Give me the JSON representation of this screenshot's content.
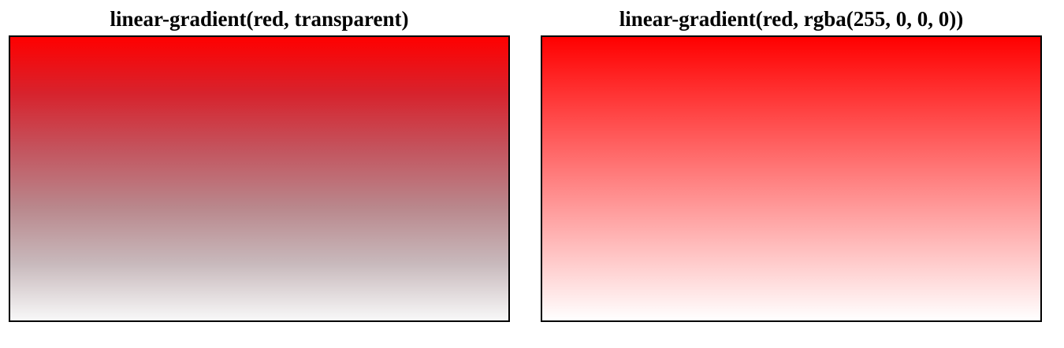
{
  "panels": [
    {
      "title": "linear-gradient(red, transparent)",
      "gradient": {
        "from": "#ff0000",
        "to": "transparent"
      }
    },
    {
      "title": "linear-gradient(red, rgba(255, 0, 0, 0))",
      "gradient": {
        "from": "#ff0000",
        "to": "rgba(255, 0, 0, 0)"
      }
    }
  ]
}
